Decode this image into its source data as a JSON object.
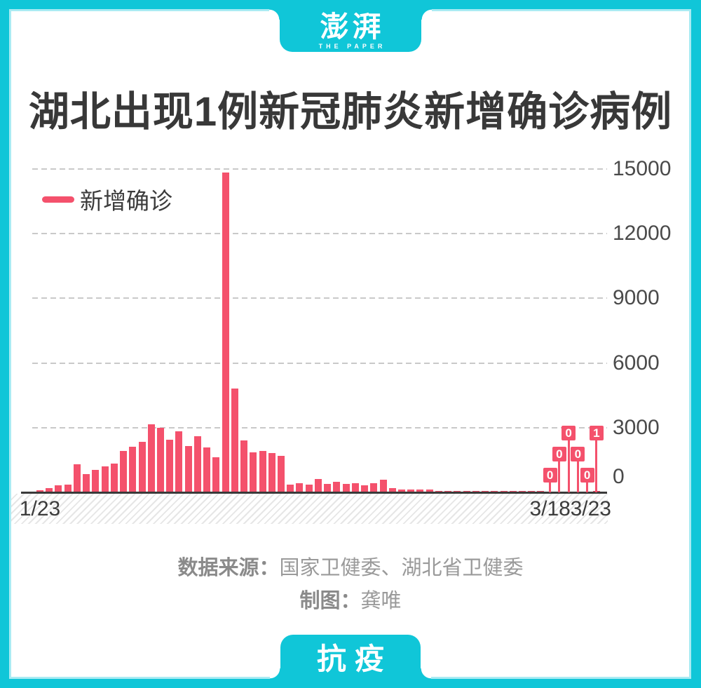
{
  "brand": {
    "logo_zh": "澎湃",
    "logo_en": "THE PAPER",
    "bottom_tag": "抗疫"
  },
  "page": {
    "title": "湖北出现1例新冠肺炎新增确诊病例"
  },
  "legend": {
    "series_label": "新增确诊"
  },
  "footer": {
    "source_label": "数据来源：",
    "source_value": "国家卫健委、湖北省卫健委",
    "credit_label": "制图：",
    "credit_value": "龚唯"
  },
  "colors": {
    "teal": "#10c6d8",
    "teal_light": "#a9ebf3",
    "pink": "#f4516c",
    "title_text": "#383838",
    "axis_text": "#4a4a4a",
    "muted_text": "#9a9a9a",
    "gridline": "#c9c9c9",
    "axis_line": "#3a3a3a"
  },
  "chart_data": {
    "type": "bar",
    "title": "湖北出现1例新冠肺炎新增确诊病例",
    "series_name": "新增确诊",
    "bar_color": "#f4516c",
    "ylim": [
      0,
      15000
    ],
    "y_ticks": [
      0,
      3000,
      6000,
      9000,
      12000,
      15000
    ],
    "grid": "horizontal-dashed",
    "legend_position": "top-left",
    "x_tick_labels_shown": [
      "1/23",
      "3/18",
      "3/23"
    ],
    "x": [
      "1/23",
      "1/24",
      "1/25",
      "1/26",
      "1/27",
      "1/28",
      "1/29",
      "1/30",
      "1/31",
      "2/1",
      "2/2",
      "2/3",
      "2/4",
      "2/5",
      "2/6",
      "2/7",
      "2/8",
      "2/9",
      "2/10",
      "2/11",
      "2/12",
      "2/13",
      "2/14",
      "2/15",
      "2/16",
      "2/17",
      "2/18",
      "2/19",
      "2/20",
      "2/21",
      "2/22",
      "2/23",
      "2/24",
      "2/25",
      "2/26",
      "2/27",
      "2/28",
      "2/29",
      "3/1",
      "3/2",
      "3/3",
      "3/4",
      "3/5",
      "3/6",
      "3/7",
      "3/8",
      "3/9",
      "3/10",
      "3/11",
      "3/12",
      "3/13",
      "3/14",
      "3/15",
      "3/16",
      "3/17",
      "3/18",
      "3/19",
      "3/20",
      "3/21",
      "3/22",
      "3/23"
    ],
    "values": [
      105,
      180,
      323,
      371,
      1291,
      840,
      1032,
      1220,
      1347,
      1921,
      2103,
      2345,
      3156,
      2987,
      2447,
      2841,
      2147,
      2618,
      2097,
      1638,
      14840,
      4823,
      2420,
      1843,
      1933,
      1807,
      1693,
      349,
      411,
      366,
      630,
      398,
      499,
      401,
      409,
      318,
      423,
      570,
      196,
      114,
      115,
      134,
      126,
      74,
      41,
      36,
      17,
      13,
      8,
      5,
      4,
      4,
      4,
      1,
      1,
      0,
      0,
      0,
      0,
      0,
      1
    ],
    "annotations": [
      {
        "x": "3/18",
        "label": "0"
      },
      {
        "x": "3/19",
        "label": "0"
      },
      {
        "x": "3/20",
        "label": "0"
      },
      {
        "x": "3/21",
        "label": "0"
      },
      {
        "x": "3/22",
        "label": "0"
      },
      {
        "x": "3/23",
        "label": "1"
      }
    ]
  }
}
